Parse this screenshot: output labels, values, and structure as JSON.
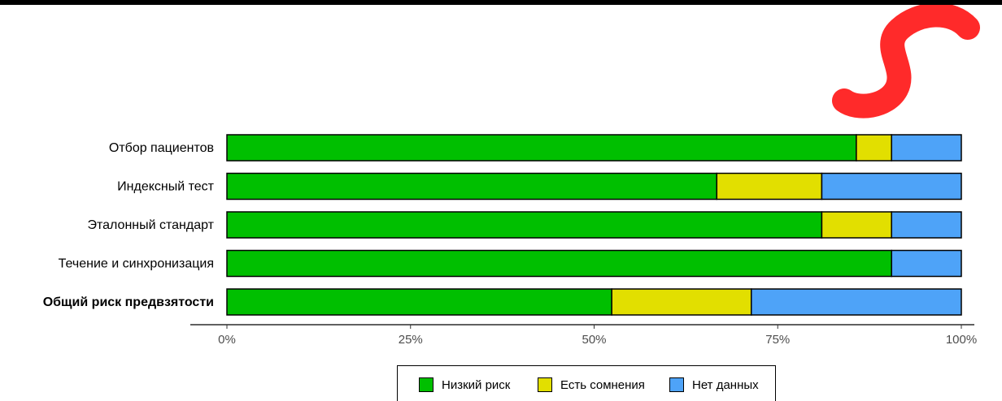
{
  "chart_data": {
    "type": "bar",
    "orientation": "horizontal",
    "stacked": true,
    "categories": [
      "Отбор пациентов",
      "Индексный тест",
      "Эталонный стандарт",
      "Течение и синхронизация",
      "Общий риск предвзятости"
    ],
    "emphasized_category": "Общий риск предвзятости",
    "series": [
      {
        "name": "Низкий риск",
        "color": "#00bf00",
        "values": [
          85.7,
          66.7,
          81.0,
          90.5,
          52.4
        ]
      },
      {
        "name": "Есть сомнения",
        "color": "#e2df00",
        "values": [
          4.8,
          14.3,
          9.5,
          0,
          19.0
        ]
      },
      {
        "name": "Нет данных",
        "color": "#4ea3f8",
        "values": [
          9.5,
          19.0,
          9.5,
          9.5,
          28.6
        ]
      }
    ],
    "xlim": [
      0,
      100
    ],
    "x_ticks": [
      "0%",
      "25%",
      "50%",
      "75%",
      "100%"
    ],
    "grid": false,
    "legend_position": "bottom"
  },
  "logo": {
    "name": "red-s-logo",
    "color": "#ff2a2a"
  }
}
